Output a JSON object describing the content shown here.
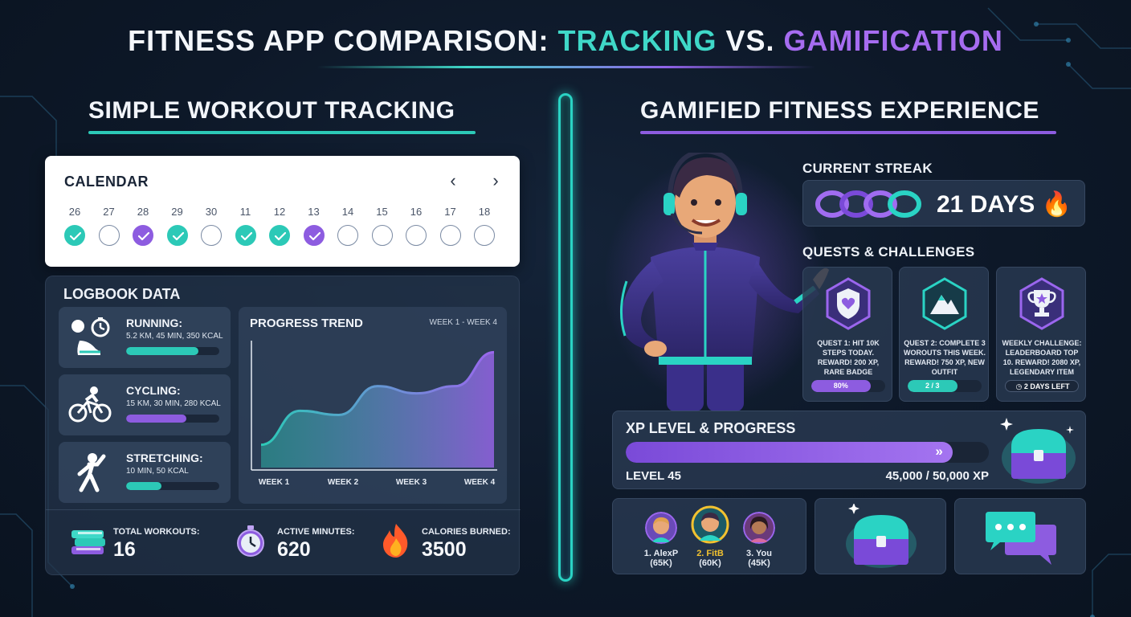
{
  "title": {
    "part1": "FITNESS APP COMPARISON: ",
    "part2": "TRACKING",
    "part3": " VS. ",
    "part4": "GAMIFICATION"
  },
  "left": {
    "heading": "SIMPLE WORKOUT TRACKING",
    "calendar": {
      "title": "CALENDAR",
      "prev": "‹",
      "next": "›",
      "days": [
        {
          "num": "26",
          "state": "teal"
        },
        {
          "num": "27",
          "state": "empty"
        },
        {
          "num": "28",
          "state": "purple"
        },
        {
          "num": "29",
          "state": "teal"
        },
        {
          "num": "30",
          "state": "empty"
        },
        {
          "num": "11",
          "state": "teal"
        },
        {
          "num": "12",
          "state": "teal"
        },
        {
          "num": "13",
          "state": "purple"
        },
        {
          "num": "14",
          "state": "empty"
        },
        {
          "num": "15",
          "state": "empty"
        },
        {
          "num": "16",
          "state": "empty"
        },
        {
          "num": "17",
          "state": "empty"
        },
        {
          "num": "18",
          "state": "empty"
        }
      ]
    },
    "logbook": {
      "title": "LOGBOOK DATA",
      "activities": [
        {
          "name": "RUNNING:",
          "stats": "5.2 KM, 45 MIN, 350 KCAL",
          "progress": 0.78,
          "color": "#2cc9b7",
          "icon": "running-icon"
        },
        {
          "name": "CYCLING:",
          "stats": "15 KM, 30 MIN, 280 KCAL",
          "progress": 0.65,
          "color": "#8d5ce0",
          "icon": "cycling-icon"
        },
        {
          "name": "STRETCHING:",
          "stats": "10 MIN, 50 KCAL",
          "progress": 0.38,
          "color": "#2cc9b7",
          "icon": "stretching-icon"
        }
      ],
      "trend": {
        "title": "PROGRESS TREND",
        "range": "WEEK 1 - WEEK 4",
        "weeks": [
          "WEEK 1",
          "WEEK 2",
          "WEEK 3",
          "WEEK 4"
        ]
      },
      "summary": [
        {
          "label": "TOTAL WORKOUTS:",
          "value": "16",
          "icon": "books-icon"
        },
        {
          "label": "ACTIVE MINUTES:",
          "value": "620",
          "icon": "stopwatch-icon"
        },
        {
          "label": "CALORIES BURNED:",
          "value": "3500",
          "icon": "flame-icon"
        }
      ]
    }
  },
  "chart_data": {
    "type": "area",
    "title": "PROGRESS TREND",
    "categories": [
      "WEEK 1",
      "WEEK 2",
      "WEEK 3",
      "WEEK 4"
    ],
    "x": [
      1,
      1.5,
      2,
      2.5,
      3,
      3.5,
      4
    ],
    "values": [
      0.05,
      0.38,
      0.34,
      0.62,
      0.55,
      0.62,
      0.95
    ],
    "xlabel": "",
    "ylabel": "",
    "grid": false
  },
  "right": {
    "heading": "GAMIFIED FITNESS EXPERIENCE",
    "streak": {
      "label": "CURRENT STREAK",
      "value": "21 DAYS",
      "emoji": "🔥"
    },
    "quests_label": "QUESTS & CHALLENGES",
    "quests": [
      {
        "text": "QUEST 1: HIT 10K STEPS TODAY. REWARD! 200 XP, RARE BADGE",
        "bar_label": "80%",
        "progress": 0.8,
        "color": "#8d5ce0",
        "icon": "shield-heart-icon"
      },
      {
        "text": "QUEST 2: COMPLETE 3 WOROUTS THIS WEEK. REWARD! 750 XP, NEW OUTFIT",
        "bar_label": "2 / 3",
        "progress": 0.67,
        "color": "#2cc9b7",
        "icon": "mountain-icon"
      },
      {
        "text": "WEEKLY CHALLENGE: LEADERBOARD TOP 10. REWARD! 2080 XP, LEGENDARY ITEM",
        "bar_label": "2 DAYS LEFT",
        "progress": 0,
        "color": "#8d5ce0",
        "icon": "trophy-icon"
      }
    ],
    "xp": {
      "title": "XP LEVEL & PROGRESS",
      "level": "LEVEL 45",
      "amount": "45,000 / 50,000 XP",
      "progress": 0.9
    },
    "leaderboard": [
      {
        "name": "1. AlexP",
        "xp": "(65K)",
        "highlight": false
      },
      {
        "name": "2. FitB",
        "xp": "(60K)",
        "highlight": true
      },
      {
        "name": "3. You",
        "xp": "(45K)",
        "highlight": false
      }
    ],
    "colors": {
      "teal": "#2cc9b7",
      "purple": "#8d5ce0",
      "gold": "#f2c230"
    }
  }
}
